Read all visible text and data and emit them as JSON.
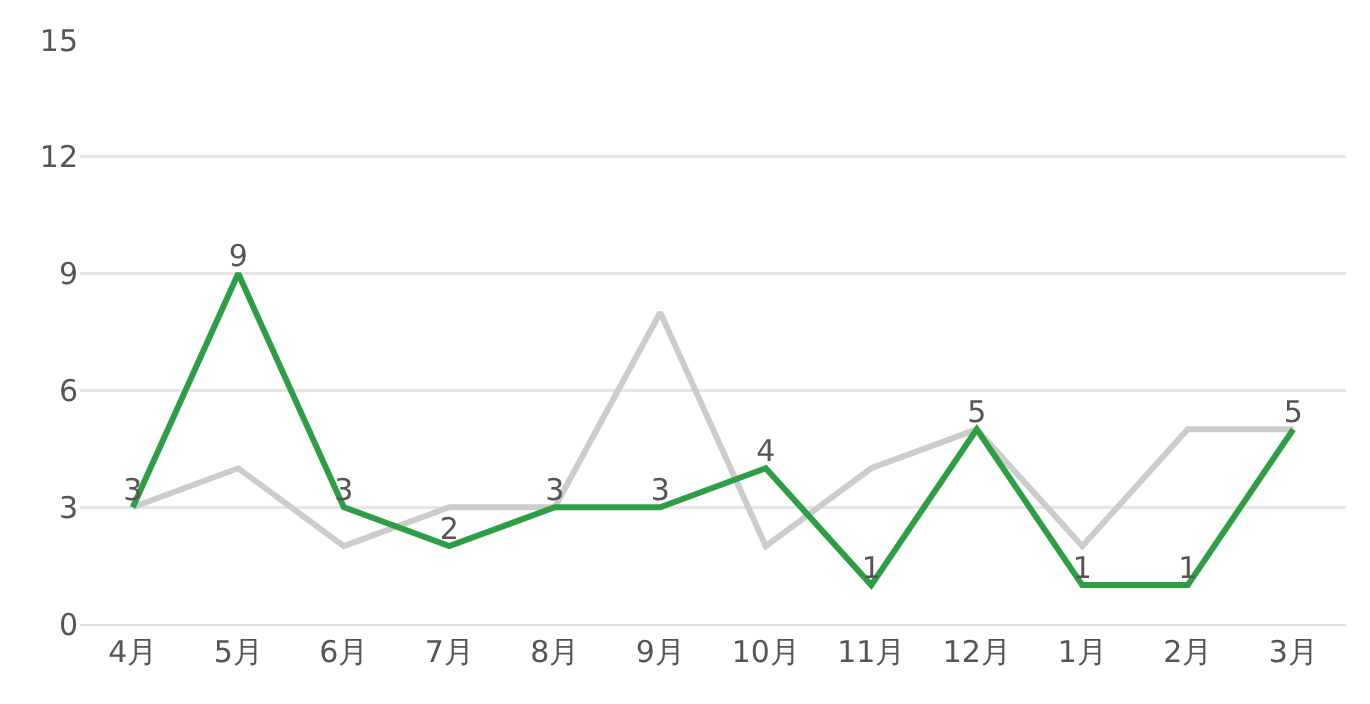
{
  "chart_data": {
    "type": "line",
    "categories": [
      "4月",
      "5月",
      "6月",
      "7月",
      "8月",
      "9月",
      "10月",
      "11月",
      "12月",
      "1月",
      "2月",
      "3月"
    ],
    "series": [
      {
        "color": "#cccccc",
        "values": [
          3,
          4,
          2,
          3,
          3,
          8,
          2,
          4,
          5,
          2,
          5,
          5
        ]
      },
      {
        "color": "#2e9e44",
        "values": [
          3,
          9,
          3,
          2,
          3,
          3,
          4,
          1,
          5,
          1,
          1,
          5
        ],
        "value_labels": [
          "3",
          "9",
          "3",
          "2",
          "3",
          "3",
          "4",
          "1",
          "5",
          "1",
          "1",
          "5"
        ]
      }
    ],
    "ylim": [
      0,
      15
    ],
    "yticks": [
      0,
      3,
      6,
      9,
      12,
      15
    ],
    "grid": "y",
    "marker": "none",
    "line_style": "solid"
  }
}
